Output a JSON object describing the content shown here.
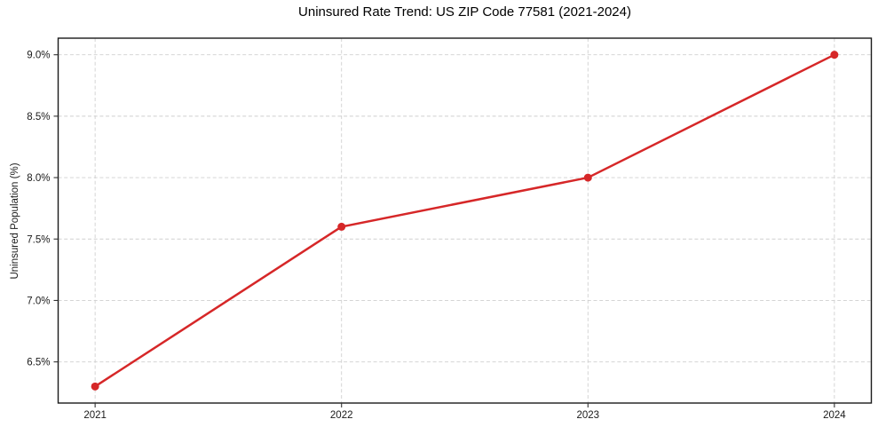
{
  "chart_data": {
    "type": "line",
    "title": "Uninsured Rate Trend: US ZIP Code 77581 (2021-2024)",
    "xlabel": "",
    "ylabel": "Uninsured Population (%)",
    "categories": [
      "2021",
      "2022",
      "2023",
      "2024"
    ],
    "x": [
      2021,
      2022,
      2023,
      2024
    ],
    "values": [
      6.3,
      7.6,
      8.0,
      9.0
    ],
    "x_ticks": [
      2021,
      2022,
      2023,
      2024
    ],
    "x_tick_labels": [
      "2021",
      "2022",
      "2023",
      "2024"
    ],
    "y_ticks": [
      6.5,
      7.0,
      7.5,
      8.0,
      8.5,
      9.0
    ],
    "y_tick_labels": [
      "6.5%",
      "7.0%",
      "7.5%",
      "8.0%",
      "8.5%",
      "9.0%"
    ],
    "xlim": [
      2020.85,
      2024.15
    ],
    "ylim": [
      6.165,
      9.135
    ],
    "grid": true,
    "grid_style": "dashed",
    "legend_position": "none",
    "marker": "circle",
    "colors": {
      "line": "#d62728",
      "marker": "#d62728",
      "grid": "#cfcfcf",
      "axis": "#1a1a1a",
      "tick": "#333333",
      "text": "#1a1a1a",
      "title": "#000000",
      "background": "#ffffff"
    }
  }
}
